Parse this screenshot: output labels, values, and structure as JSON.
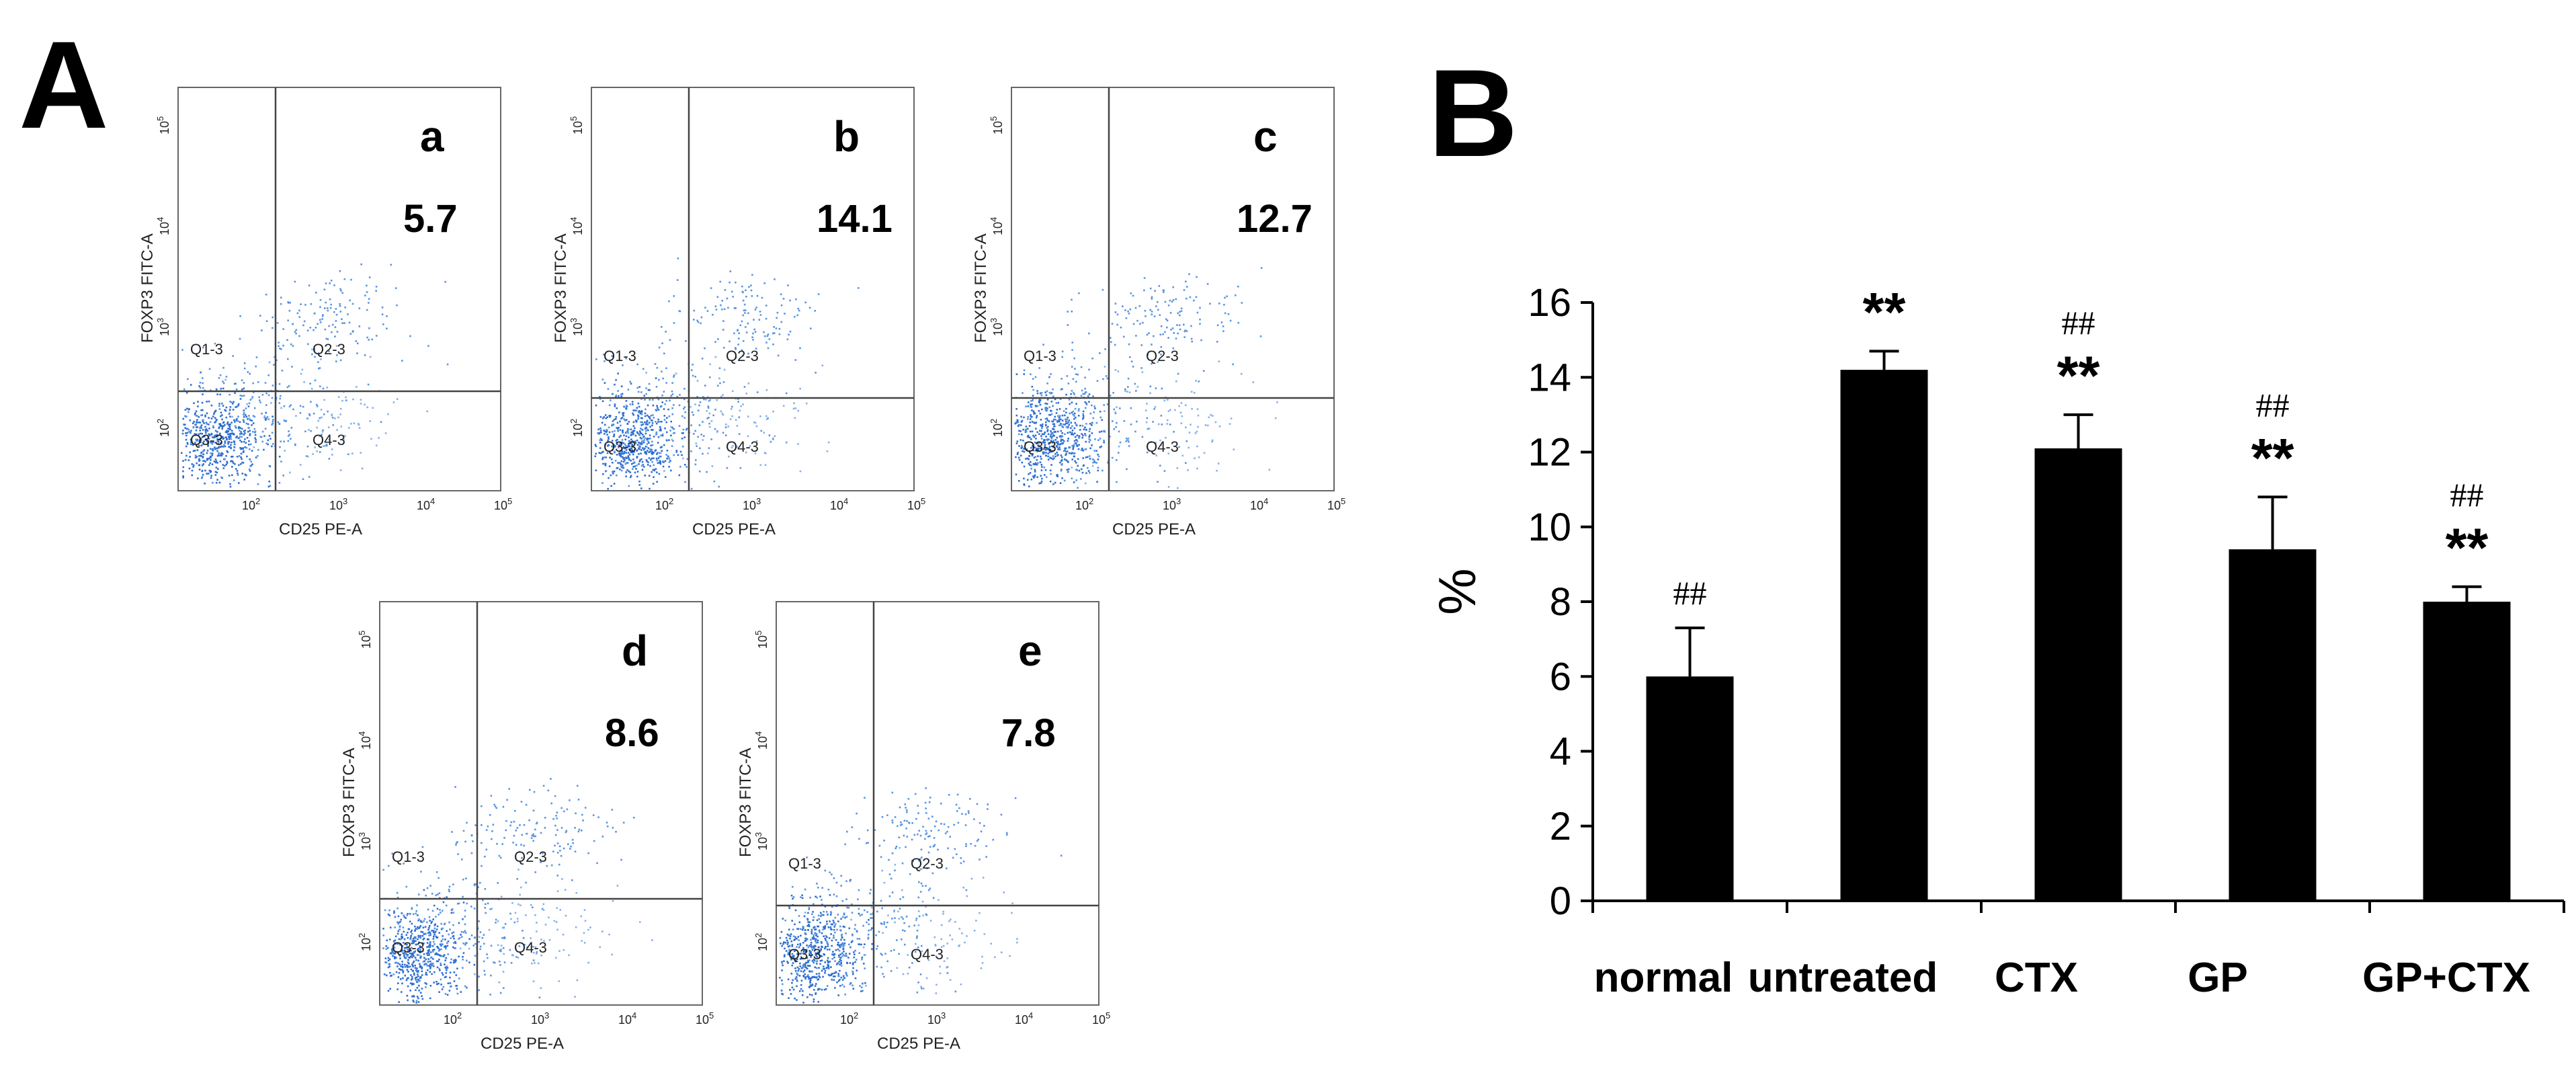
{
  "panel_labels": [
    "A",
    "B"
  ],
  "flow_panels": [
    {
      "letter": "a",
      "percent": "5.7",
      "x_label": "CD25 PE-A",
      "y_label": "FOXP3 FITC-A",
      "quadrants": [
        "Q1-3",
        "Q2-3",
        "Q3-3",
        "Q4-3"
      ]
    },
    {
      "letter": "b",
      "percent": "14.1",
      "x_label": "CD25 PE-A",
      "y_label": "FOXP3 FITC-A",
      "quadrants": [
        "Q1-3",
        "Q2-3",
        "Q3-3",
        "Q4-3"
      ]
    },
    {
      "letter": "c",
      "percent": "12.7",
      "x_label": "CD25 PE-A",
      "y_label": "FOXP3 FITC-A",
      "quadrants": [
        "Q1-3",
        "Q2-3",
        "Q3-3",
        "Q4-3"
      ]
    },
    {
      "letter": "d",
      "percent": "8.6",
      "x_label": "CD25 PE-A",
      "y_label": "FOXP3 FITC-A",
      "quadrants": [
        "Q1-3",
        "Q2-3",
        "Q3-3",
        "Q4-3"
      ]
    },
    {
      "letter": "e",
      "percent": "7.8",
      "x_label": "CD25 PE-A",
      "y_label": "FOXP3 FITC-A",
      "quadrants": [
        "Q1-3",
        "Q2-3",
        "Q3-3",
        "Q4-3"
      ]
    }
  ],
  "log_axis": {
    "base": "10",
    "exponents": [
      "2",
      "3",
      "4",
      "5"
    ]
  },
  "chart_data": {
    "type": "bar",
    "title": "",
    "xlabel": "",
    "ylabel": "%",
    "ylim": [
      0,
      16
    ],
    "yticks": [
      0,
      2,
      4,
      6,
      8,
      10,
      12,
      14,
      16
    ],
    "categories": [
      "normal",
      "untreated",
      "CTX",
      "GP",
      "GP+CTX"
    ],
    "values": [
      6.0,
      14.2,
      12.1,
      9.4,
      8.0
    ],
    "errors": [
      1.3,
      0.5,
      0.9,
      1.4,
      0.4
    ],
    "annotations": [
      {
        "category": "normal",
        "hash": "##",
        "star": ""
      },
      {
        "category": "untreated",
        "hash": "",
        "star": "**"
      },
      {
        "category": "CTX",
        "hash": "##",
        "star": "**"
      },
      {
        "category": "GP",
        "hash": "##",
        "star": "**"
      },
      {
        "category": "GP+CTX",
        "hash": "##",
        "star": "**"
      }
    ],
    "bar_color": "#000000"
  }
}
